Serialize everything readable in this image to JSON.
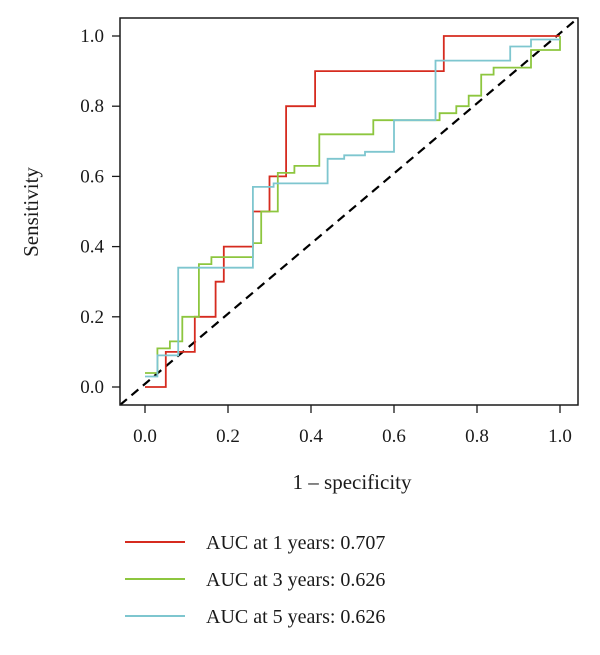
{
  "chart_data": {
    "type": "line",
    "title": "",
    "xlabel": "1 – specificity",
    "ylabel": "Sensitivity",
    "xlim": [
      0,
      1
    ],
    "ylim": [
      0,
      1
    ],
    "xticks": [
      "0.0",
      "0.2",
      "0.4",
      "0.6",
      "0.8",
      "1.0"
    ],
    "yticks": [
      "0.0",
      "0.2",
      "0.4",
      "0.6",
      "0.8",
      "1.0"
    ],
    "grid": false,
    "legend_position": "bottom",
    "reference_line": {
      "style": "dashed",
      "color": "#000000",
      "from": [
        0,
        0
      ],
      "to": [
        1,
        1
      ]
    },
    "series": [
      {
        "name": "AUC at 1 years: 0.707",
        "color": "#d62b1f",
        "x": [
          0,
          0.05,
          0.05,
          0.12,
          0.12,
          0.17,
          0.17,
          0.19,
          0.19,
          0.26,
          0.26,
          0.3,
          0.3,
          0.34,
          0.34,
          0.41,
          0.41,
          0.72,
          0.72,
          1.0
        ],
        "y": [
          0,
          0,
          0.1,
          0.1,
          0.2,
          0.2,
          0.3,
          0.3,
          0.4,
          0.4,
          0.5,
          0.5,
          0.6,
          0.6,
          0.8,
          0.8,
          0.9,
          0.9,
          1.0,
          1.0
        ]
      },
      {
        "name": "AUC at 3 years: 0.626",
        "color": "#8dc63f",
        "x": [
          0,
          0.03,
          0.03,
          0.06,
          0.06,
          0.09,
          0.09,
          0.13,
          0.13,
          0.16,
          0.16,
          0.26,
          0.26,
          0.28,
          0.28,
          0.32,
          0.32,
          0.36,
          0.36,
          0.42,
          0.42,
          0.55,
          0.55,
          0.71,
          0.71,
          0.75,
          0.75,
          0.78,
          0.78,
          0.81,
          0.81,
          0.84,
          0.84,
          0.93,
          0.93,
          1.0,
          1.0
        ],
        "y": [
          0.04,
          0.04,
          0.11,
          0.11,
          0.13,
          0.13,
          0.2,
          0.2,
          0.35,
          0.35,
          0.37,
          0.37,
          0.41,
          0.41,
          0.5,
          0.5,
          0.61,
          0.61,
          0.63,
          0.63,
          0.72,
          0.72,
          0.76,
          0.76,
          0.78,
          0.78,
          0.8,
          0.8,
          0.83,
          0.83,
          0.89,
          0.89,
          0.91,
          0.91,
          0.96,
          0.96,
          1.0
        ]
      },
      {
        "name": "AUC at 5 years: 0.626",
        "color": "#7ec6cf",
        "x": [
          0,
          0.03,
          0.03,
          0.08,
          0.08,
          0.1,
          0.1,
          0.26,
          0.26,
          0.31,
          0.31,
          0.34,
          0.34,
          0.44,
          0.44,
          0.48,
          0.48,
          0.53,
          0.53,
          0.6,
          0.6,
          0.7,
          0.7,
          0.88,
          0.88,
          0.93,
          0.93,
          0.98,
          0.98,
          1.0
        ],
        "y": [
          0.03,
          0.03,
          0.09,
          0.09,
          0.34,
          0.34,
          0.34,
          0.34,
          0.57,
          0.57,
          0.58,
          0.58,
          0.58,
          0.58,
          0.65,
          0.65,
          0.66,
          0.66,
          0.67,
          0.67,
          0.76,
          0.76,
          0.93,
          0.93,
          0.97,
          0.97,
          0.99,
          0.99,
          0.99,
          0.99
        ]
      }
    ]
  }
}
